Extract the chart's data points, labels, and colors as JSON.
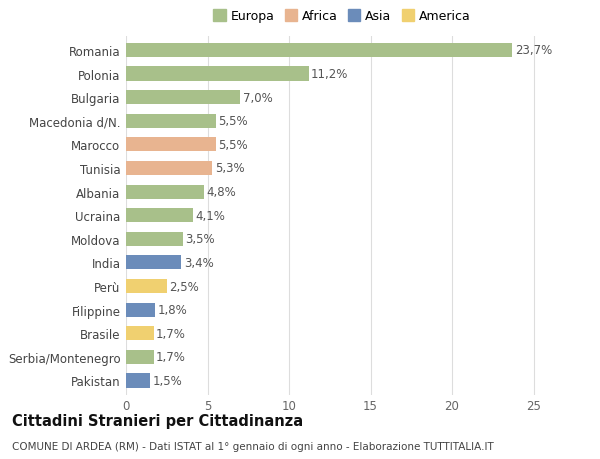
{
  "categories": [
    "Romania",
    "Polonia",
    "Bulgaria",
    "Macedonia d/N.",
    "Marocco",
    "Tunisia",
    "Albania",
    "Ucraina",
    "Moldova",
    "India",
    "Perù",
    "Filippine",
    "Brasile",
    "Serbia/Montenegro",
    "Pakistan"
  ],
  "values": [
    23.7,
    11.2,
    7.0,
    5.5,
    5.5,
    5.3,
    4.8,
    4.1,
    3.5,
    3.4,
    2.5,
    1.8,
    1.7,
    1.7,
    1.5
  ],
  "labels": [
    "23,7%",
    "11,2%",
    "7,0%",
    "5,5%",
    "5,5%",
    "5,3%",
    "4,8%",
    "4,1%",
    "3,5%",
    "3,4%",
    "2,5%",
    "1,8%",
    "1,7%",
    "1,7%",
    "1,5%"
  ],
  "continents": [
    "Europa",
    "Europa",
    "Europa",
    "Europa",
    "Africa",
    "Africa",
    "Europa",
    "Europa",
    "Europa",
    "Asia",
    "America",
    "Asia",
    "America",
    "Europa",
    "Asia"
  ],
  "colors": {
    "Europa": "#a8c08a",
    "Africa": "#e8b490",
    "Asia": "#6b8cba",
    "America": "#f0d070"
  },
  "background_color": "#ffffff",
  "plot_bg_color": "#ffffff",
  "grid_color": "#dddddd",
  "title": "Cittadini Stranieri per Cittadinanza",
  "subtitle": "COMUNE DI ARDEA (RM) - Dati ISTAT al 1° gennaio di ogni anno - Elaborazione TUTTITALIA.IT",
  "xlim": [
    0,
    26.5
  ],
  "xticks": [
    0,
    5,
    10,
    15,
    20,
    25
  ],
  "bar_height": 0.6,
  "label_fontsize": 8.5,
  "title_fontsize": 10.5,
  "subtitle_fontsize": 7.5,
  "tick_fontsize": 8.5,
  "legend_fontsize": 9
}
